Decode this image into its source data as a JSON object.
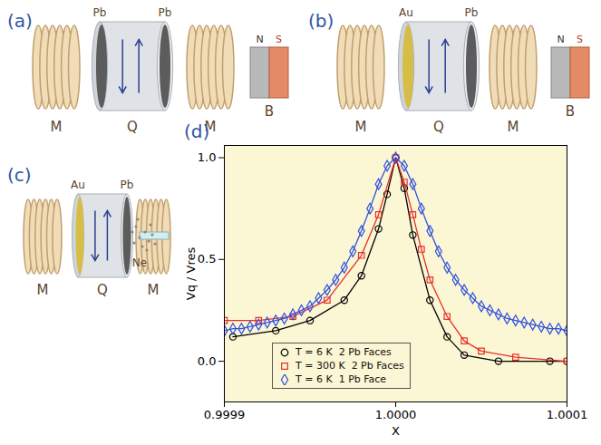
{
  "diagrams": [
    {
      "label": "(a)",
      "coils": "M",
      "crystal": "Q",
      "faces": [
        "Pb",
        "Pb"
      ],
      "magnet": {
        "label": "B",
        "poles": [
          "N",
          "S"
        ]
      }
    },
    {
      "label": "(b)",
      "coils": "M",
      "crystal": "Q",
      "faces": [
        "Au",
        "Pb"
      ],
      "magnet": {
        "label": "B",
        "poles": [
          "N",
          "S"
        ]
      }
    },
    {
      "label": "(c)",
      "coils": "M",
      "crystal": "Q",
      "faces": [
        "Au",
        "Pb"
      ],
      "gas": "Ne"
    }
  ],
  "chart_data": {
    "type": "line",
    "panel_label": "(d)",
    "x_label": "X",
    "y_label": "Vq / Vres",
    "xlim": [
      0.9999,
      1.0001
    ],
    "xticks": [
      0.9999,
      {
        "value": 1,
        "label": "1.0000"
      },
      1.0001
    ],
    "ylim": [
      -0.2,
      1.06
    ],
    "yticks": [
      {
        "value": 0,
        "label": "0.0"
      },
      0.5,
      {
        "value": 1,
        "label": "1.0"
      }
    ],
    "legend": "bottom",
    "series": [
      {
        "name": "T = 6 K  2 Pb Faces",
        "color": "#000000",
        "marker": "circle",
        "line_style": "solid",
        "x": [
          0.999905,
          0.99993,
          0.99995,
          0.99997,
          0.99998,
          0.99999,
          0.999995,
          1,
          1.000005,
          1.00001,
          1.00002,
          1.00003,
          1.00004,
          1.00006,
          1.00009,
          1.0001
        ],
        "values": [
          0.12,
          0.15,
          0.2,
          0.3,
          0.42,
          0.65,
          0.82,
          1.0,
          0.85,
          0.62,
          0.3,
          0.12,
          0.03,
          0.0,
          0.0,
          0.0
        ]
      },
      {
        "name": "T = 300 K  2 Pb Faces",
        "color": "#e8302a",
        "marker": "square",
        "line_style": "solid",
        "x": [
          0.9999,
          0.99992,
          0.99994,
          0.99996,
          0.99998,
          0.99999,
          1,
          1.000005,
          1.00001,
          1.000015,
          1.00002,
          1.00003,
          1.00004,
          1.00005,
          1.00007,
          1.0001
        ],
        "values": [
          0.2,
          0.2,
          0.22,
          0.3,
          0.52,
          0.72,
          1.0,
          0.88,
          0.72,
          0.55,
          0.4,
          0.22,
          0.1,
          0.05,
          0.02,
          0.0
        ]
      },
      {
        "name": "T = 6 K  1 Pb Face",
        "color": "#3050e0",
        "marker": "diamond",
        "line_style": "solid",
        "x": [
          0.9999,
          0.999905,
          0.99991,
          0.999915,
          0.99992,
          0.999925,
          0.99993,
          0.999935,
          0.99994,
          0.999945,
          0.99995,
          0.999955,
          0.99996,
          0.999965,
          0.99997,
          0.999975,
          0.99998,
          0.999985,
          0.99999,
          0.999995,
          1,
          1.000005,
          1.00001,
          1.000015,
          1.00002,
          1.000025,
          1.00003,
          1.000035,
          1.00004,
          1.000045,
          1.00005,
          1.000055,
          1.00006,
          1.000065,
          1.00007,
          1.000075,
          1.00008,
          1.000085,
          1.00009,
          1.000095,
          1.0001
        ],
        "values": [
          0.15,
          0.16,
          0.16,
          0.17,
          0.18,
          0.19,
          0.2,
          0.21,
          0.23,
          0.25,
          0.27,
          0.31,
          0.35,
          0.4,
          0.46,
          0.54,
          0.64,
          0.75,
          0.87,
          0.96,
          1.0,
          0.96,
          0.87,
          0.75,
          0.64,
          0.54,
          0.46,
          0.4,
          0.35,
          0.31,
          0.27,
          0.25,
          0.23,
          0.21,
          0.2,
          0.19,
          0.18,
          0.17,
          0.16,
          0.16,
          0.15
        ]
      }
    ]
  }
}
